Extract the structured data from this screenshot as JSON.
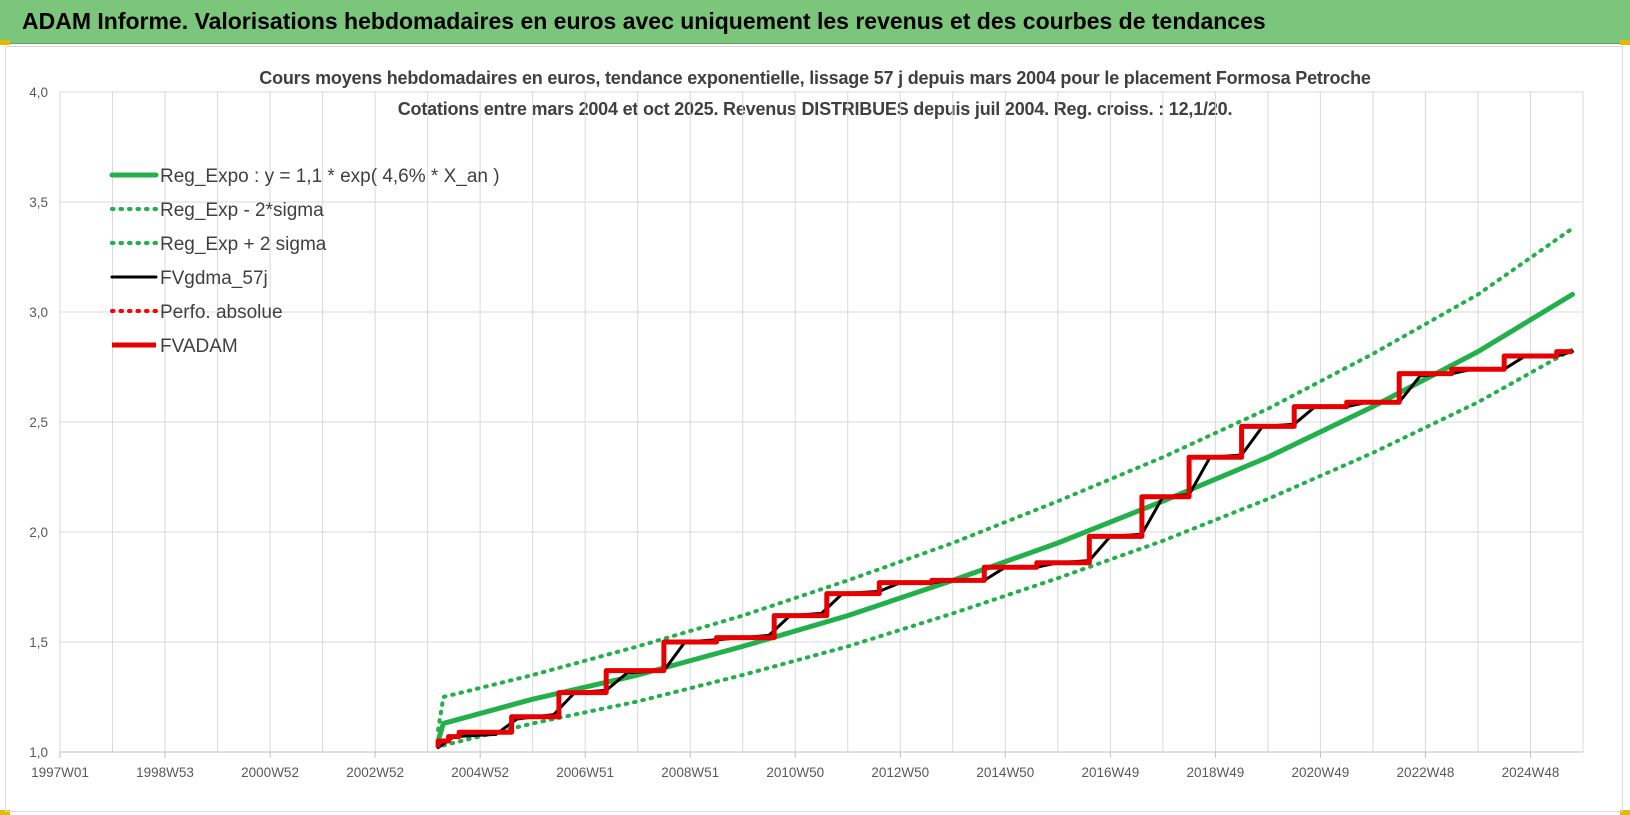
{
  "header": {
    "title": "ADAM Informe. Valorisations hebdomadaires en euros avec uniquement les revenus et des courbes de tendances"
  },
  "chart_data": {
    "type": "line",
    "title": "Cours moyens hebdomadaires en euros, tendance exponentielle, lissage 57 j depuis mars 2004 pour le placement Formosa Petroche",
    "subtitle": "Cotations entre mars 2004 et oct 2025. Revenus DISTRIBUES depuis juil 2004. Reg. croiss. : 12,1/20.",
    "x_tick_labels": [
      "1997W01",
      "1998W53",
      "2000W52",
      "2002W52",
      "2004W52",
      "2006W51",
      "2008W51",
      "2010W50",
      "2012W50",
      "2014W50",
      "2016W49",
      "2018W49",
      "2020W49",
      "2022W48",
      "2024W48"
    ],
    "x_range_years": [
      1997.0,
      2026.0
    ],
    "y_tick_labels": [
      "1,0",
      "1,5",
      "2,0",
      "2,5",
      "3,0",
      "3,5",
      "4,0"
    ],
    "ylim": [
      1.0,
      4.0
    ],
    "grid": true,
    "legend_position": "top-left",
    "series": [
      {
        "name": "Reg_Expo : y = 1,1 * exp( 4,6% *  X_an )",
        "color": "#22b04b",
        "style": "solid",
        "x_years": [
          2004.2,
          2004.3,
          2006,
          2008,
          2010,
          2012,
          2014,
          2016,
          2018,
          2020,
          2022,
          2024,
          2025.8
        ],
        "values": [
          1.05,
          1.13,
          1.24,
          1.35,
          1.48,
          1.62,
          1.78,
          1.95,
          2.14,
          2.34,
          2.57,
          2.82,
          3.08
        ]
      },
      {
        "name": "Reg_Exp - 2*sigma",
        "color": "#22b04b",
        "style": "dotted",
        "x_years": [
          2004.3,
          2006,
          2008,
          2010,
          2012,
          2014,
          2016,
          2018,
          2020,
          2022,
          2024,
          2025.8
        ],
        "values": [
          1.03,
          1.13,
          1.23,
          1.35,
          1.48,
          1.63,
          1.79,
          1.96,
          2.15,
          2.36,
          2.59,
          2.83
        ]
      },
      {
        "name": "Reg_Exp + 2 sigma",
        "color": "#22b04b",
        "style": "dotted",
        "x_years": [
          2004.2,
          2004.3,
          2006,
          2008,
          2010,
          2012,
          2014,
          2016,
          2018,
          2020,
          2022,
          2024,
          2025.8
        ],
        "values": [
          1.1,
          1.25,
          1.35,
          1.48,
          1.62,
          1.78,
          1.95,
          2.14,
          2.34,
          2.56,
          2.81,
          3.08,
          3.38
        ]
      },
      {
        "name": "FVgdma_57j",
        "color": "#000000",
        "style": "solid",
        "x_years": [
          2004.2,
          2004.5,
          2005.3,
          2005.7,
          2006.4,
          2006.8,
          2007.4,
          2007.8,
          2008.5,
          2008.9,
          2009.5,
          2010.0,
          2010.5,
          2010.9,
          2011.5,
          2011.9,
          2012.6,
          2013.0,
          2013.6,
          2014.0,
          2014.6,
          2015.0,
          2015.6,
          2016.0,
          2016.6,
          2017.0,
          2017.6,
          2018.0,
          2018.5,
          2018.9,
          2019.5,
          2019.9,
          2020.5,
          2020.9,
          2021.5,
          2021.9,
          2022.5,
          2022.9,
          2023.5,
          2023.9,
          2024.5,
          2024.9,
          2025.5,
          2025.8
        ],
        "values": [
          1.02,
          1.07,
          1.08,
          1.15,
          1.17,
          1.27,
          1.28,
          1.36,
          1.37,
          1.5,
          1.51,
          1.52,
          1.53,
          1.62,
          1.63,
          1.72,
          1.73,
          1.77,
          1.77,
          1.78,
          1.78,
          1.84,
          1.84,
          1.86,
          1.87,
          1.98,
          1.99,
          2.16,
          2.17,
          2.34,
          2.35,
          2.48,
          2.49,
          2.57,
          2.57,
          2.59,
          2.59,
          2.71,
          2.72,
          2.74,
          2.74,
          2.8,
          2.8,
          2.82
        ]
      },
      {
        "name": "Perfo. absolue",
        "color": "#ff0000",
        "style": "dotted",
        "x_years": [],
        "values": []
      },
      {
        "name": "FVADAM",
        "color": "#e60000",
        "style": "solid-thick",
        "x_years": [
          2004.2,
          2004.2,
          2004.4,
          2004.4,
          2004.6,
          2004.6,
          2005.6,
          2005.6,
          2006.5,
          2006.5,
          2007.4,
          2007.4,
          2008.5,
          2008.5,
          2009.5,
          2009.5,
          2010.6,
          2010.6,
          2011.6,
          2011.6,
          2012.6,
          2012.6,
          2013.6,
          2013.6,
          2014.6,
          2014.6,
          2015.6,
          2015.6,
          2016.6,
          2016.6,
          2017.6,
          2017.6,
          2018.5,
          2018.5,
          2019.5,
          2019.5,
          2020.5,
          2020.5,
          2021.5,
          2021.5,
          2022.5,
          2022.5,
          2023.5,
          2023.5,
          2024.5,
          2024.5,
          2025.5,
          2025.5,
          2025.8
        ],
        "values": [
          1.02,
          1.05,
          1.05,
          1.07,
          1.07,
          1.09,
          1.09,
          1.16,
          1.16,
          1.27,
          1.27,
          1.37,
          1.37,
          1.5,
          1.5,
          1.52,
          1.52,
          1.62,
          1.62,
          1.72,
          1.72,
          1.77,
          1.77,
          1.78,
          1.78,
          1.84,
          1.84,
          1.86,
          1.86,
          1.98,
          1.98,
          2.16,
          2.16,
          2.34,
          2.34,
          2.48,
          2.48,
          2.57,
          2.57,
          2.59,
          2.59,
          2.72,
          2.72,
          2.74,
          2.74,
          2.8,
          2.8,
          2.82,
          2.82
        ]
      }
    ]
  }
}
